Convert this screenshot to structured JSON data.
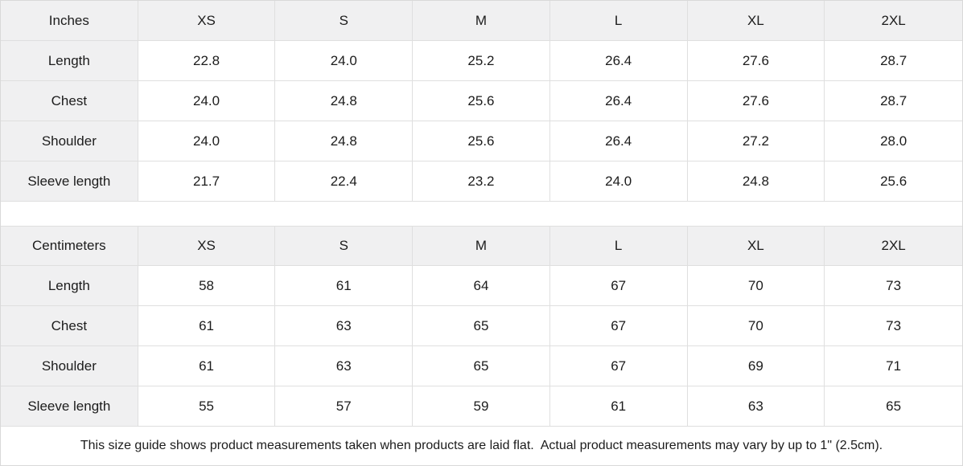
{
  "colors": {
    "header_cell_bg": "#f0f0f1",
    "border": "#dfdfdf",
    "text": "#1c1c1c",
    "background": "#ffffff"
  },
  "tables": [
    {
      "name": "inches",
      "unit_label": "Inches",
      "columns": [
        "XS",
        "S",
        "M",
        "L",
        "XL",
        "2XL"
      ],
      "rows": [
        {
          "label": "Length",
          "values": [
            "22.8",
            "24.0",
            "25.2",
            "26.4",
            "27.6",
            "28.7"
          ]
        },
        {
          "label": "Chest",
          "values": [
            "24.0",
            "24.8",
            "25.6",
            "26.4",
            "27.6",
            "28.7"
          ]
        },
        {
          "label": "Shoulder",
          "values": [
            "24.0",
            "24.8",
            "25.6",
            "26.4",
            "27.2",
            "28.0"
          ]
        },
        {
          "label": "Sleeve length",
          "values": [
            "21.7",
            "22.4",
            "23.2",
            "24.0",
            "24.8",
            "25.6"
          ]
        }
      ]
    },
    {
      "name": "centimeters",
      "unit_label": "Centimeters",
      "columns": [
        "XS",
        "S",
        "M",
        "L",
        "XL",
        "2XL"
      ],
      "rows": [
        {
          "label": "Length",
          "values": [
            "58",
            "61",
            "64",
            "67",
            "70",
            "73"
          ]
        },
        {
          "label": "Chest",
          "values": [
            "61",
            "63",
            "65",
            "67",
            "70",
            "73"
          ]
        },
        {
          "label": "Shoulder",
          "values": [
            "61",
            "63",
            "65",
            "67",
            "69",
            "71"
          ]
        },
        {
          "label": "Sleeve length",
          "values": [
            "55",
            "57",
            "59",
            "61",
            "63",
            "65"
          ]
        }
      ]
    }
  ],
  "footer": {
    "note": "This size guide shows product measurements taken when products are laid flat.  Actual product measurements may vary by up to 1\" (2.5cm)."
  }
}
